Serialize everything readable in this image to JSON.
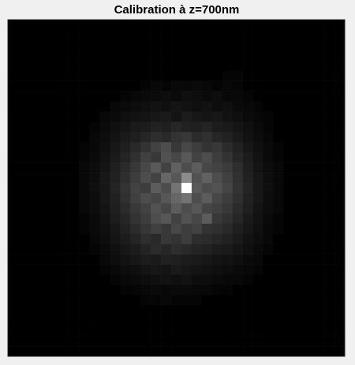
{
  "chart_data": {
    "type": "heatmap",
    "title": "Calibration à z=700nm",
    "clim": [
      0,
      100
    ],
    "colormap": "gray",
    "values": [
      [
        0,
        0,
        0,
        0,
        0,
        0,
        0,
        0,
        0,
        0,
        0,
        0,
        0,
        0,
        0,
        0,
        0,
        0,
        0,
        0,
        0,
        0,
        0,
        0,
        0,
        0,
        0,
        0,
        0,
        0,
        0,
        0,
        0
      ],
      [
        0,
        0,
        0,
        0,
        0,
        0,
        0,
        0,
        0,
        0,
        0,
        0,
        0,
        0,
        0,
        0,
        0,
        0,
        0,
        0,
        0,
        0,
        0,
        0,
        0,
        0,
        0,
        0,
        0,
        0,
        0,
        0,
        0
      ],
      [
        0,
        0,
        0,
        0,
        0,
        0,
        0,
        0,
        0,
        0,
        0,
        0,
        0,
        0,
        0,
        0,
        0,
        0,
        0,
        0,
        0,
        0,
        0,
        0,
        0,
        0,
        0,
        0,
        0,
        0,
        0,
        0,
        0
      ],
      [
        0,
        0,
        0,
        0,
        0,
        0,
        0,
        0,
        0,
        0,
        0,
        0,
        0,
        0,
        0,
        0,
        0,
        0,
        0,
        0,
        0,
        0,
        0,
        0,
        0,
        0,
        0,
        0,
        0,
        0,
        0,
        0,
        0
      ],
      [
        0,
        0,
        0,
        0,
        0,
        0,
        0,
        0,
        0,
        0,
        0,
        0,
        0,
        0,
        0,
        0,
        0,
        0,
        0,
        0,
        0,
        0,
        0,
        0,
        0,
        0,
        0,
        0,
        0,
        0,
        0,
        0,
        0
      ],
      [
        0,
        0,
        0,
        0,
        0,
        0,
        0,
        0,
        0,
        0,
        0,
        0,
        0,
        0,
        0,
        0,
        0,
        0,
        0,
        0,
        0,
        2,
        2,
        0,
        0,
        0,
        0,
        0,
        0,
        0,
        0,
        0,
        0
      ],
      [
        0,
        0,
        0,
        0,
        0,
        0,
        0,
        0,
        0,
        0,
        0,
        0,
        0,
        2,
        3,
        2,
        3,
        3,
        4,
        3,
        2,
        3,
        2,
        0,
        0,
        0,
        0,
        0,
        0,
        0,
        0,
        0,
        0
      ],
      [
        0,
        0,
        0,
        0,
        0,
        0,
        0,
        0,
        0,
        0,
        0,
        2,
        3,
        4,
        4,
        5,
        4,
        6,
        5,
        4,
        5,
        3,
        3,
        2,
        0,
        0,
        0,
        0,
        0,
        0,
        0,
        0,
        0
      ],
      [
        0,
        0,
        0,
        0,
        0,
        0,
        0,
        0,
        0,
        0,
        3,
        4,
        5,
        6,
        7,
        6,
        8,
        7,
        6,
        7,
        5,
        6,
        4,
        3,
        2,
        0,
        0,
        0,
        0,
        0,
        0,
        0,
        0
      ],
      [
        0,
        0,
        0,
        0,
        0,
        0,
        0,
        0,
        0,
        3,
        4,
        6,
        7,
        8,
        9,
        10,
        8,
        11,
        9,
        8,
        9,
        7,
        6,
        4,
        3,
        2,
        0,
        0,
        0,
        0,
        0,
        0,
        0
      ],
      [
        0,
        0,
        0,
        0,
        0,
        0,
        0,
        0,
        2,
        4,
        6,
        8,
        10,
        11,
        13,
        12,
        15,
        13,
        12,
        14,
        11,
        10,
        8,
        6,
        4,
        2,
        0,
        0,
        0,
        0,
        0,
        0,
        0
      ],
      [
        0,
        0,
        0,
        0,
        0,
        0,
        0,
        0,
        3,
        5,
        7,
        10,
        12,
        15,
        18,
        16,
        20,
        22,
        17,
        19,
        15,
        13,
        10,
        7,
        5,
        3,
        0,
        0,
        0,
        0,
        0,
        0,
        0
      ],
      [
        0,
        0,
        0,
        0,
        0,
        0,
        0,
        2,
        3,
        6,
        9,
        12,
        16,
        20,
        26,
        30,
        22,
        28,
        24,
        20,
        22,
        17,
        13,
        9,
        6,
        4,
        2,
        0,
        0,
        0,
        0,
        0,
        0
      ],
      [
        0,
        0,
        0,
        0,
        0,
        0,
        0,
        2,
        4,
        7,
        10,
        14,
        19,
        25,
        22,
        32,
        28,
        35,
        26,
        30,
        24,
        20,
        15,
        11,
        7,
        4,
        2,
        0,
        0,
        0,
        0,
        0,
        0
      ],
      [
        0,
        0,
        0,
        0,
        0,
        0,
        0,
        3,
        5,
        8,
        12,
        17,
        22,
        28,
        35,
        26,
        38,
        30,
        36,
        28,
        26,
        23,
        18,
        12,
        8,
        5,
        3,
        0,
        0,
        0,
        0,
        0,
        0
      ],
      [
        0,
        0,
        0,
        0,
        0,
        0,
        0,
        3,
        5,
        9,
        13,
        18,
        24,
        30,
        26,
        40,
        34,
        55,
        32,
        38,
        30,
        25,
        19,
        13,
        9,
        5,
        3,
        0,
        0,
        0,
        0,
        0,
        0
      ],
      [
        0,
        0,
        0,
        0,
        0,
        0,
        0,
        3,
        6,
        9,
        14,
        20,
        26,
        24,
        36,
        30,
        45,
        100,
        35,
        30,
        32,
        27,
        20,
        14,
        9,
        6,
        3,
        0,
        0,
        0,
        0,
        0,
        0
      ],
      [
        0,
        0,
        0,
        0,
        0,
        0,
        0,
        3,
        5,
        9,
        13,
        19,
        25,
        30,
        28,
        34,
        40,
        45,
        30,
        36,
        28,
        24,
        19,
        13,
        9,
        5,
        3,
        0,
        0,
        0,
        0,
        0,
        0
      ],
      [
        0,
        0,
        0,
        0,
        0,
        0,
        0,
        3,
        5,
        8,
        12,
        17,
        22,
        26,
        32,
        28,
        36,
        30,
        34,
        27,
        25,
        22,
        17,
        12,
        8,
        5,
        3,
        0,
        0,
        0,
        0,
        0,
        0
      ],
      [
        0,
        0,
        0,
        0,
        0,
        0,
        0,
        2,
        4,
        7,
        11,
        15,
        20,
        24,
        30,
        34,
        26,
        32,
        28,
        36,
        22,
        19,
        15,
        10,
        7,
        4,
        2,
        0,
        0,
        0,
        0,
        0,
        0
      ],
      [
        0,
        0,
        0,
        0,
        0,
        0,
        0,
        2,
        4,
        6,
        9,
        13,
        17,
        21,
        25,
        22,
        28,
        24,
        26,
        20,
        19,
        16,
        12,
        9,
        6,
        3,
        2,
        0,
        0,
        0,
        0,
        0,
        0
      ],
      [
        0,
        0,
        0,
        0,
        0,
        0,
        0,
        0,
        3,
        5,
        8,
        11,
        14,
        18,
        16,
        22,
        20,
        24,
        18,
        17,
        15,
        13,
        10,
        7,
        5,
        3,
        0,
        0,
        0,
        0,
        0,
        0,
        0
      ],
      [
        0,
        0,
        0,
        0,
        0,
        0,
        0,
        0,
        2,
        4,
        6,
        9,
        11,
        14,
        17,
        15,
        18,
        16,
        14,
        13,
        11,
        10,
        8,
        6,
        4,
        2,
        0,
        0,
        0,
        0,
        0,
        0,
        0
      ],
      [
        0,
        0,
        0,
        0,
        0,
        0,
        0,
        0,
        0,
        3,
        5,
        7,
        9,
        11,
        10,
        13,
        12,
        11,
        10,
        9,
        8,
        7,
        6,
        4,
        3,
        0,
        0,
        0,
        0,
        0,
        0,
        0,
        0
      ],
      [
        0,
        0,
        0,
        0,
        0,
        0,
        0,
        0,
        0,
        2,
        3,
        5,
        6,
        8,
        9,
        8,
        10,
        9,
        8,
        7,
        6,
        5,
        4,
        3,
        2,
        0,
        0,
        0,
        0,
        0,
        0,
        0,
        0
      ],
      [
        0,
        0,
        0,
        0,
        0,
        0,
        0,
        0,
        0,
        0,
        2,
        3,
        4,
        5,
        6,
        7,
        6,
        7,
        5,
        5,
        4,
        3,
        3,
        2,
        0,
        0,
        0,
        0,
        0,
        0,
        0,
        0,
        0
      ],
      [
        0,
        0,
        0,
        0,
        0,
        0,
        0,
        0,
        0,
        0,
        0,
        2,
        2,
        3,
        4,
        3,
        4,
        4,
        3,
        3,
        2,
        2,
        0,
        0,
        0,
        0,
        0,
        0,
        0,
        0,
        0,
        0,
        0
      ],
      [
        0,
        0,
        0,
        0,
        0,
        0,
        0,
        0,
        0,
        0,
        0,
        0,
        0,
        2,
        2,
        3,
        2,
        2,
        2,
        0,
        0,
        0,
        0,
        0,
        0,
        0,
        0,
        0,
        0,
        0,
        0,
        0,
        0
      ],
      [
        0,
        0,
        0,
        0,
        0,
        0,
        0,
        0,
        0,
        0,
        0,
        0,
        0,
        0,
        0,
        0,
        0,
        0,
        0,
        0,
        0,
        0,
        0,
        0,
        0,
        0,
        0,
        0,
        0,
        0,
        0,
        0,
        0
      ],
      [
        0,
        0,
        0,
        0,
        0,
        0,
        0,
        0,
        0,
        0,
        0,
        0,
        0,
        0,
        0,
        0,
        0,
        0,
        0,
        0,
        0,
        0,
        0,
        0,
        0,
        0,
        0,
        0,
        0,
        0,
        0,
        0,
        0
      ],
      [
        0,
        0,
        0,
        0,
        0,
        0,
        0,
        0,
        0,
        0,
        0,
        0,
        0,
        0,
        0,
        0,
        0,
        0,
        0,
        0,
        0,
        0,
        0,
        0,
        0,
        0,
        0,
        0,
        0,
        0,
        0,
        0,
        0
      ],
      [
        0,
        0,
        0,
        0,
        0,
        0,
        0,
        0,
        0,
        0,
        0,
        0,
        0,
        0,
        0,
        0,
        0,
        0,
        0,
        0,
        0,
        0,
        0,
        0,
        0,
        0,
        0,
        0,
        0,
        0,
        0,
        0,
        0
      ],
      [
        0,
        0,
        0,
        0,
        0,
        0,
        0,
        0,
        0,
        0,
        0,
        0,
        0,
        0,
        0,
        0,
        0,
        0,
        0,
        0,
        0,
        0,
        0,
        0,
        0,
        0,
        0,
        0,
        0,
        0,
        0,
        0,
        0
      ]
    ]
  }
}
